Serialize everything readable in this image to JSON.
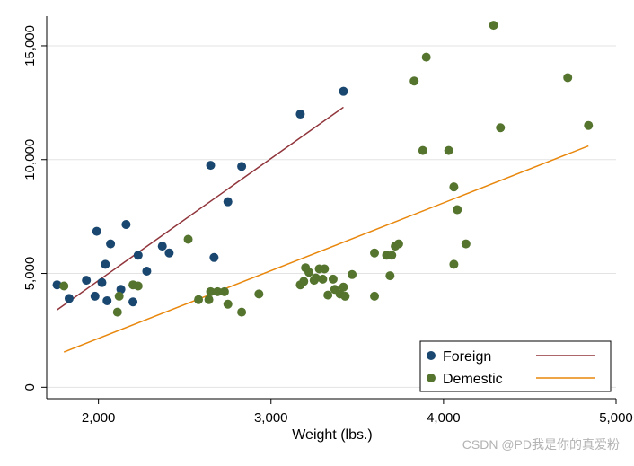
{
  "watermark": "CSDN @PD我是你的真爱粉",
  "chart_data": {
    "type": "scatter",
    "xlabel": "Weight (lbs.)",
    "ylabel": "",
    "xlim": [
      1700,
      5000
    ],
    "ylim": [
      -500,
      16300
    ],
    "xticks": [
      2000,
      3000,
      4000,
      5000
    ],
    "xtick_labels": [
      "2,000",
      "3,000",
      "4,000",
      "5,000"
    ],
    "yticks": [
      0,
      5000,
      10000,
      15000
    ],
    "ytick_labels": [
      "0",
      "5,000",
      "10,000",
      "15,000"
    ],
    "grid": "horizontal",
    "legend_position": "bottom-right",
    "series": [
      {
        "name": "Foreign",
        "marker": "dot",
        "color": "#1a476f",
        "points": [
          [
            1760,
            4500
          ],
          [
            1830,
            3900
          ],
          [
            1930,
            4700
          ],
          [
            1980,
            4000
          ],
          [
            1990,
            6850
          ],
          [
            2020,
            4600
          ],
          [
            2040,
            5400
          ],
          [
            2050,
            3800
          ],
          [
            2070,
            6300
          ],
          [
            2130,
            4300
          ],
          [
            2160,
            7150
          ],
          [
            2200,
            3750
          ],
          [
            2230,
            5800
          ],
          [
            2280,
            5100
          ],
          [
            2370,
            6200
          ],
          [
            2410,
            5900
          ],
          [
            2650,
            9750
          ],
          [
            2670,
            5700
          ],
          [
            2750,
            8150
          ],
          [
            2830,
            9700
          ],
          [
            3170,
            12000
          ],
          [
            3420,
            13000
          ]
        ]
      },
      {
        "name": "Demestic",
        "marker": "dot",
        "color": "#55752f",
        "points": [
          [
            1800,
            4450
          ],
          [
            2110,
            3300
          ],
          [
            2120,
            4000
          ],
          [
            2200,
            4500
          ],
          [
            2230,
            4450
          ],
          [
            2520,
            6500
          ],
          [
            2580,
            3850
          ],
          [
            2640,
            3850
          ],
          [
            2650,
            4200
          ],
          [
            2690,
            4200
          ],
          [
            2730,
            4200
          ],
          [
            2750,
            3650
          ],
          [
            2830,
            3300
          ],
          [
            2930,
            4100
          ],
          [
            3170,
            4500
          ],
          [
            3190,
            4650
          ],
          [
            3200,
            5250
          ],
          [
            3220,
            5050
          ],
          [
            3250,
            4700
          ],
          [
            3260,
            4800
          ],
          [
            3280,
            5200
          ],
          [
            3300,
            4750
          ],
          [
            3310,
            5200
          ],
          [
            3330,
            4050
          ],
          [
            3360,
            4750
          ],
          [
            3370,
            4300
          ],
          [
            3400,
            4100
          ],
          [
            3420,
            4400
          ],
          [
            3430,
            4000
          ],
          [
            3470,
            4950
          ],
          [
            3600,
            5900
          ],
          [
            3600,
            4000
          ],
          [
            3670,
            5800
          ],
          [
            3690,
            4900
          ],
          [
            3700,
            5800
          ],
          [
            3720,
            6200
          ],
          [
            3740,
            6300
          ],
          [
            3830,
            13450
          ],
          [
            3880,
            10400
          ],
          [
            3900,
            14500
          ],
          [
            4030,
            10400
          ],
          [
            4060,
            8800
          ],
          [
            4060,
            5400
          ],
          [
            4080,
            7800
          ],
          [
            4130,
            6300
          ],
          [
            4290,
            15900
          ],
          [
            4330,
            11400
          ],
          [
            4720,
            13600
          ],
          [
            4840,
            11500
          ]
        ]
      }
    ],
    "fit_lines": [
      {
        "series": "Foreign",
        "color": "#90353b",
        "x": [
          1760,
          3420
        ],
        "y": [
          3400,
          12300
        ]
      },
      {
        "series": "Demestic",
        "color": "#e8870c",
        "x": [
          1800,
          4840
        ],
        "y": [
          1550,
          10600
        ]
      }
    ]
  }
}
